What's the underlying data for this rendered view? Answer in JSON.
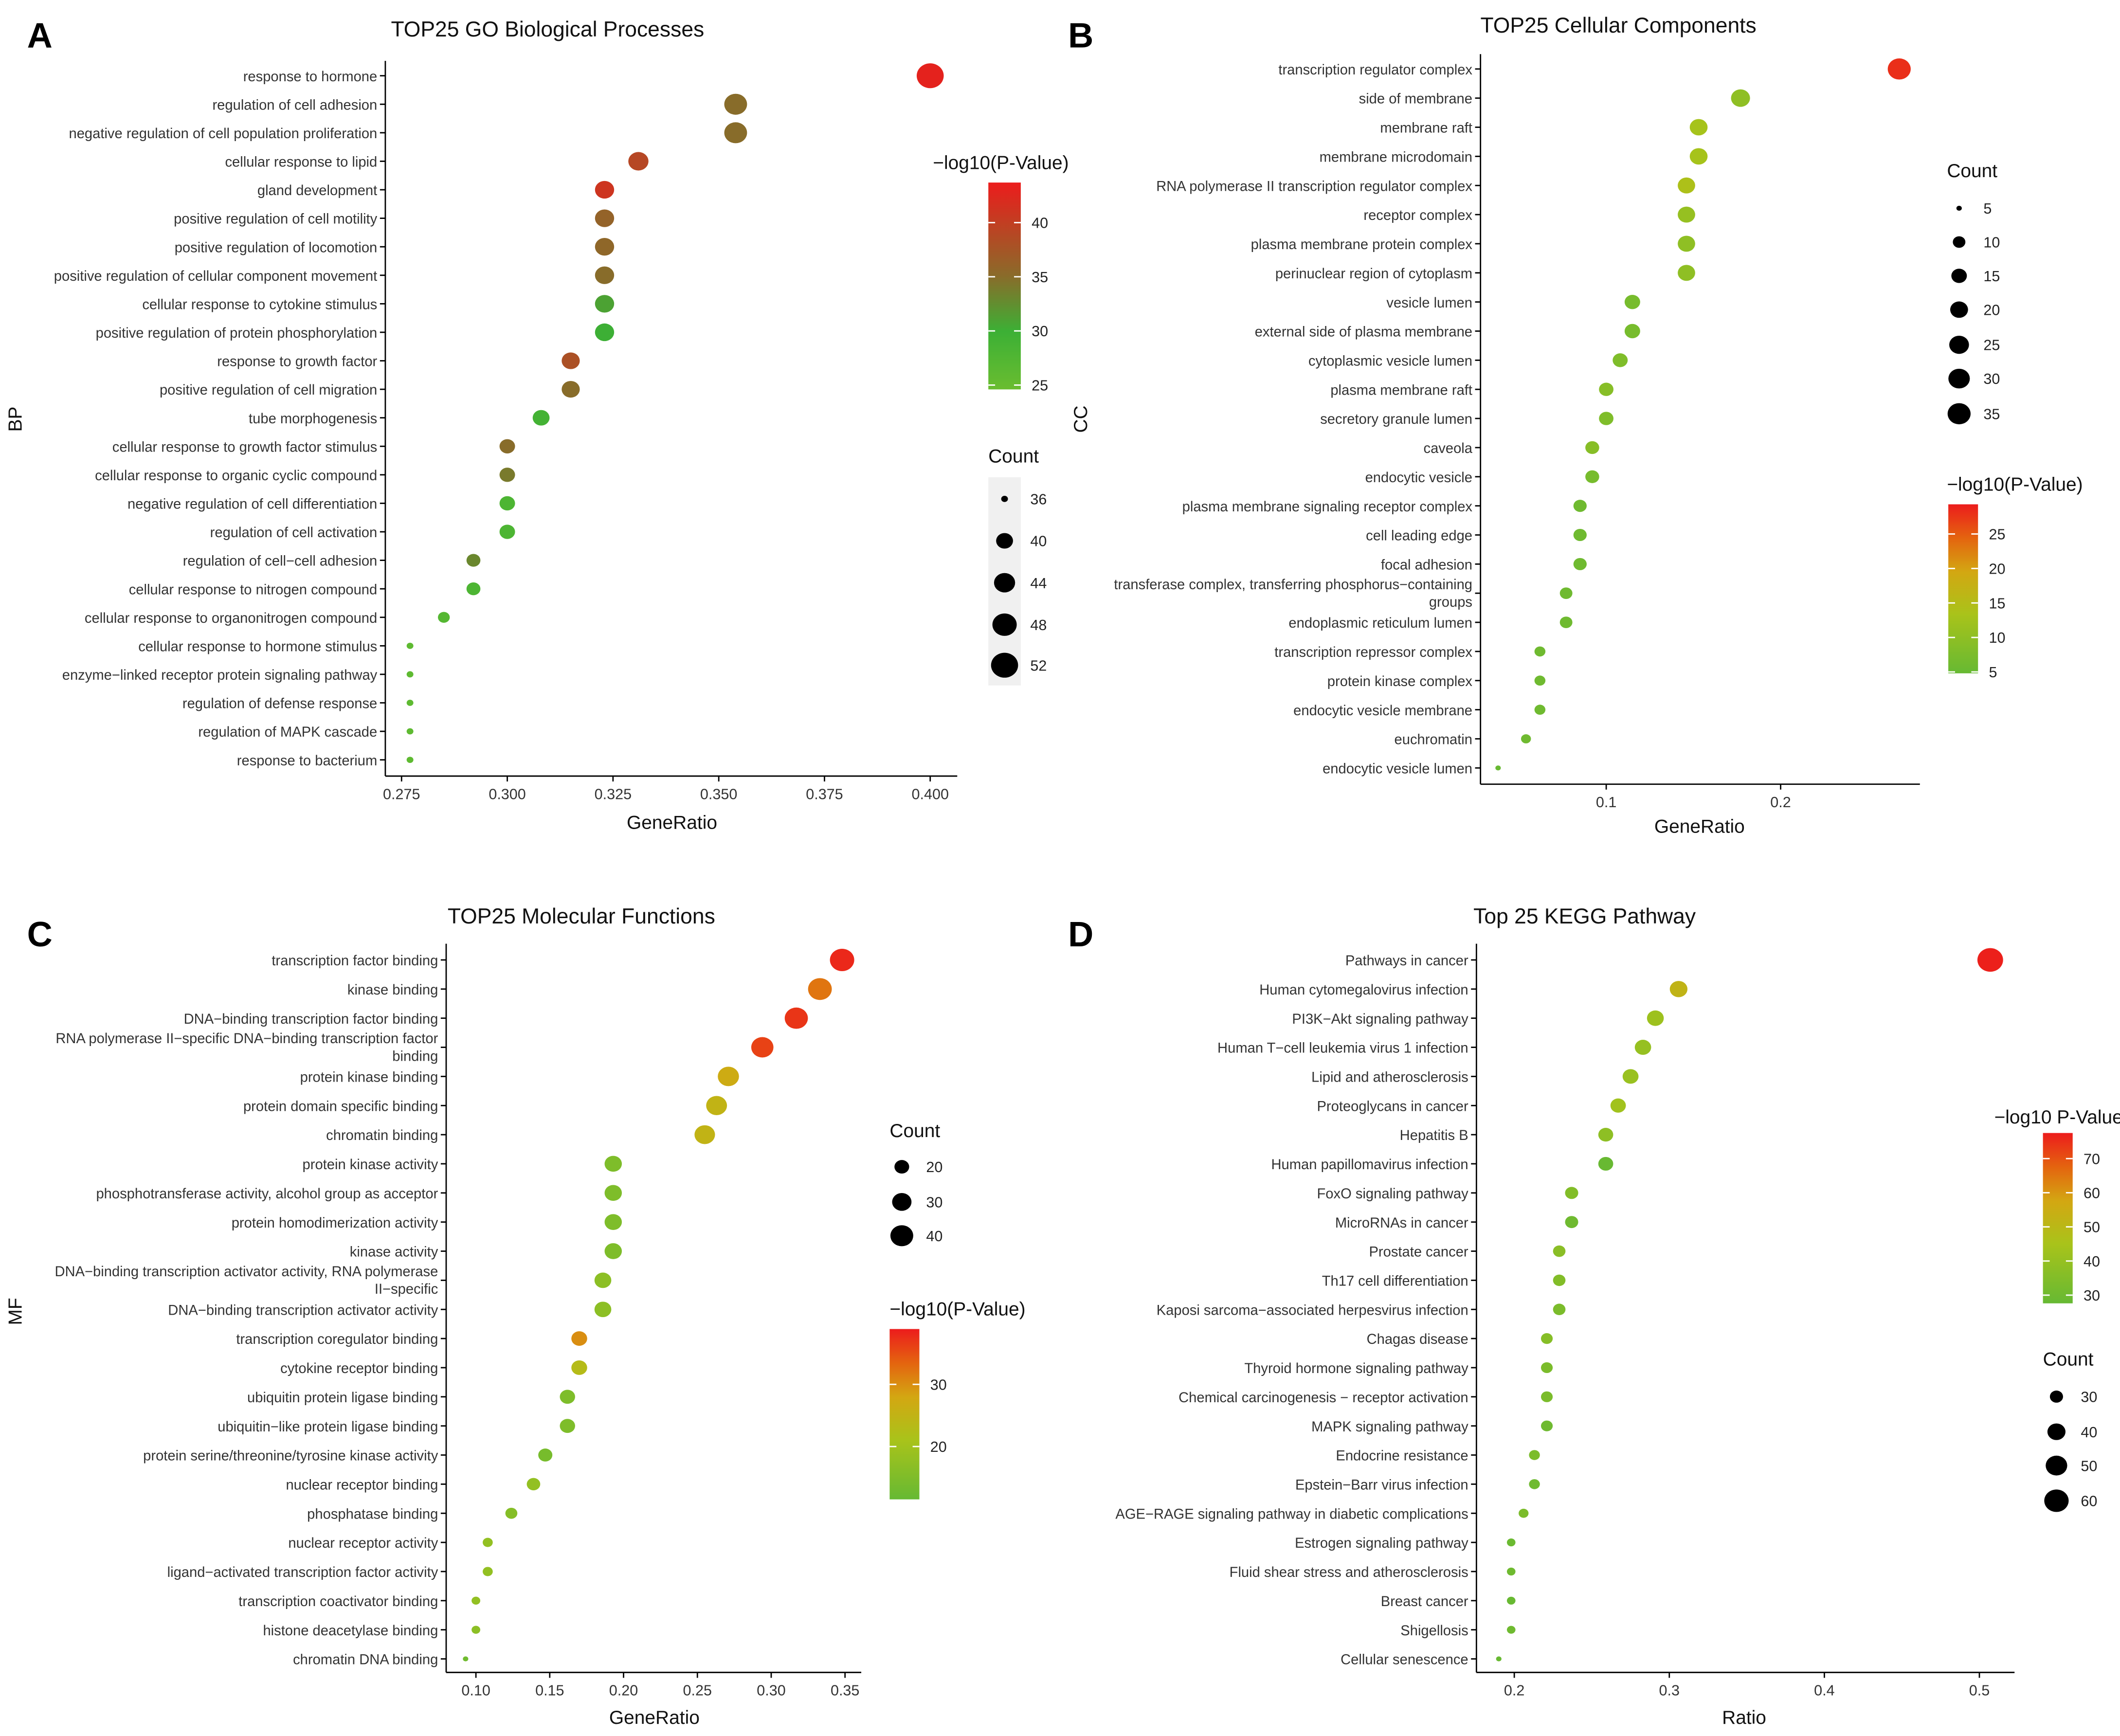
{
  "chart_data": [
    {
      "type": "scatter",
      "panel": "A",
      "title": "TOP25 GO Biological Processes",
      "xlabel": "GeneRatio",
      "ylabel": "BP",
      "xticks": [
        "0.275",
        "0.300",
        "0.325",
        "0.350",
        "0.375",
        "0.400"
      ],
      "color_legend": {
        "title": "−log10(P-Value)",
        "ticks": [
          "25",
          "30",
          "35",
          "40"
        ],
        "range": [
          24.6,
          43.7
        ],
        "stops": [
          [
            0,
            "#6abd30"
          ],
          [
            0.28,
            "#3cb035"
          ],
          [
            0.55,
            "#8a6b2a"
          ],
          [
            1,
            "#ec1c1c"
          ]
        ]
      },
      "size_legend": {
        "title": "Count",
        "values": [
          "36",
          "40",
          "44",
          "48",
          "52"
        ]
      },
      "points": [
        {
          "term": "response to hormone",
          "x": 0.4,
          "count": 52,
          "logp": 43
        },
        {
          "term": "regulation of cell adhesion",
          "x": 0.354,
          "count": 46,
          "logp": 35
        },
        {
          "term": "negative regulation of cell population proliferation",
          "x": 0.354,
          "count": 46,
          "logp": 35
        },
        {
          "term": "cellular response to lipid",
          "x": 0.331,
          "count": 43,
          "logp": 39
        },
        {
          "term": "gland development",
          "x": 0.323,
          "count": 42,
          "logp": 41
        },
        {
          "term": "positive regulation of cell motility",
          "x": 0.323,
          "count": 42,
          "logp": 36
        },
        {
          "term": "positive regulation of locomotion",
          "x": 0.323,
          "count": 42,
          "logp": 35.5
        },
        {
          "term": "positive regulation of cellular component movement",
          "x": 0.323,
          "count": 42,
          "logp": 35
        },
        {
          "term": "cellular response to cytokine stimulus",
          "x": 0.323,
          "count": 42,
          "logp": 31
        },
        {
          "term": "positive regulation of protein phosphorylation",
          "x": 0.323,
          "count": 42,
          "logp": 30
        },
        {
          "term": "response to growth factor",
          "x": 0.315,
          "count": 41,
          "logp": 38
        },
        {
          "term": "positive regulation of cell migration",
          "x": 0.315,
          "count": 41,
          "logp": 35
        },
        {
          "term": "tube morphogenesis",
          "x": 0.308,
          "count": 40,
          "logp": 29
        },
        {
          "term": "cellular response to growth factor stimulus",
          "x": 0.3,
          "count": 39,
          "logp": 35
        },
        {
          "term": "cellular response to organic cyclic compound",
          "x": 0.3,
          "count": 39,
          "logp": 34
        },
        {
          "term": "negative regulation of cell differentiation",
          "x": 0.3,
          "count": 39,
          "logp": 28
        },
        {
          "term": "regulation of cell activation",
          "x": 0.3,
          "count": 39,
          "logp": 28
        },
        {
          "term": "regulation of cell−cell adhesion",
          "x": 0.292,
          "count": 38,
          "logp": 33
        },
        {
          "term": "cellular response to nitrogen compound",
          "x": 0.292,
          "count": 38,
          "logp": 28
        },
        {
          "term": "cellular response to organonitrogen compound",
          "x": 0.285,
          "count": 37,
          "logp": 27
        },
        {
          "term": "cellular response to hormone stimulus",
          "x": 0.277,
          "count": 36,
          "logp": 26
        },
        {
          "term": "enzyme−linked receptor protein signaling pathway",
          "x": 0.277,
          "count": 36,
          "logp": 26
        },
        {
          "term": "regulation of defense response",
          "x": 0.277,
          "count": 36,
          "logp": 26
        },
        {
          "term": "regulation of MAPK cascade",
          "x": 0.277,
          "count": 36,
          "logp": 26
        },
        {
          "term": "response to bacterium",
          "x": 0.277,
          "count": 36,
          "logp": 26
        }
      ]
    },
    {
      "type": "scatter",
      "panel": "B",
      "title": "TOP25 Cellular Components",
      "xlabel": "GeneRatio",
      "ylabel": "CC",
      "xticks": [
        "0.1",
        "0.2"
      ],
      "color_legend": {
        "title": "−log10(P-Value)",
        "ticks": [
          "5",
          "10",
          "15",
          "20",
          "25"
        ],
        "range": [
          4.8,
          29.3
        ],
        "stops": [
          [
            0,
            "#66b933"
          ],
          [
            0.35,
            "#a9c31a"
          ],
          [
            0.6,
            "#d3a712"
          ],
          [
            0.8,
            "#e4640f"
          ],
          [
            1,
            "#ec1c1c"
          ]
        ]
      },
      "size_legend": {
        "title": "Count",
        "values": [
          "5",
          "10",
          "15",
          "20",
          "25",
          "30",
          "35"
        ]
      },
      "points": [
        {
          "term": "transcription regulator complex",
          "x": 0.268,
          "count": 35,
          "logp": 28
        },
        {
          "term": "side of membrane",
          "x": 0.177,
          "count": 23,
          "logp": 10
        },
        {
          "term": "membrane raft",
          "x": 0.153,
          "count": 20,
          "logp": 13
        },
        {
          "term": "membrane microdomain",
          "x": 0.153,
          "count": 20,
          "logp": 13
        },
        {
          "term": "RNA polymerase II transcription regulator complex",
          "x": 0.146,
          "count": 19,
          "logp": 14
        },
        {
          "term": "receptor complex",
          "x": 0.146,
          "count": 19,
          "logp": 11
        },
        {
          "term": "plasma membrane protein complex",
          "x": 0.146,
          "count": 19,
          "logp": 10
        },
        {
          "term": "perinuclear region of cytoplasm",
          "x": 0.146,
          "count": 19,
          "logp": 10
        },
        {
          "term": "vesicle lumen",
          "x": 0.115,
          "count": 15,
          "logp": 7
        },
        {
          "term": "external side of plasma membrane",
          "x": 0.115,
          "count": 15,
          "logp": 7
        },
        {
          "term": "cytoplasmic vesicle lumen",
          "x": 0.108,
          "count": 14,
          "logp": 8
        },
        {
          "term": "plasma membrane raft",
          "x": 0.1,
          "count": 13,
          "logp": 9
        },
        {
          "term": "secretory granule lumen",
          "x": 0.1,
          "count": 13,
          "logp": 8
        },
        {
          "term": "caveola",
          "x": 0.092,
          "count": 12,
          "logp": 9
        },
        {
          "term": "endocytic vesicle",
          "x": 0.092,
          "count": 12,
          "logp": 7
        },
        {
          "term": "plasma membrane signaling receptor complex",
          "x": 0.085,
          "count": 11,
          "logp": 6
        },
        {
          "term": "cell leading edge",
          "x": 0.085,
          "count": 11,
          "logp": 6
        },
        {
          "term": "focal adhesion",
          "x": 0.085,
          "count": 11,
          "logp": 6
        },
        {
          "term": "transferase complex, transferring phosphorus−containing\ngroups",
          "x": 0.077,
          "count": 10,
          "logp": 6
        },
        {
          "term": "endoplasmic reticulum lumen",
          "x": 0.077,
          "count": 10,
          "logp": 6
        },
        {
          "term": "transcription repressor complex",
          "x": 0.062,
          "count": 8,
          "logp": 6
        },
        {
          "term": "protein kinase complex",
          "x": 0.062,
          "count": 8,
          "logp": 6
        },
        {
          "term": "endocytic vesicle membrane",
          "x": 0.062,
          "count": 8,
          "logp": 6
        },
        {
          "term": "euchromatin",
          "x": 0.054,
          "count": 7,
          "logp": 6
        },
        {
          "term": "endocytic vesicle lumen",
          "x": 0.038,
          "count": 5,
          "logp": 5
        }
      ]
    },
    {
      "type": "scatter",
      "panel": "C",
      "title": "TOP25 Molecular Functions",
      "xlabel": "GeneRatio",
      "ylabel": "MF",
      "xticks": [
        "0.10",
        "0.15",
        "0.20",
        "0.25",
        "0.30",
        "0.35"
      ],
      "color_legend": {
        "title": "−log10(P-Value)",
        "ticks": [
          "20",
          "30"
        ],
        "range": [
          11.5,
          38.9
        ],
        "stops": [
          [
            0,
            "#66b933"
          ],
          [
            0.35,
            "#a9c31a"
          ],
          [
            0.6,
            "#d3a712"
          ],
          [
            0.8,
            "#e4640f"
          ],
          [
            1,
            "#ec1c1c"
          ]
        ]
      },
      "size_legend": {
        "title": "Count",
        "values": [
          "20",
          "30",
          "40"
        ]
      },
      "points": [
        {
          "term": "transcription factor binding",
          "x": 0.348,
          "count": 45,
          "logp": 38
        },
        {
          "term": "kinase binding",
          "x": 0.333,
          "count": 43,
          "logp": 32
        },
        {
          "term": "DNA−binding transcription factor binding",
          "x": 0.317,
          "count": 41,
          "logp": 37
        },
        {
          "term": "RNA polymerase II−specific DNA−binding transcription factor\nbinding",
          "x": 0.294,
          "count": 38,
          "logp": 36
        },
        {
          "term": "protein kinase binding",
          "x": 0.271,
          "count": 35,
          "logp": 27
        },
        {
          "term": "protein domain specific binding",
          "x": 0.263,
          "count": 34,
          "logp": 25
        },
        {
          "term": "chromatin binding",
          "x": 0.255,
          "count": 33,
          "logp": 25
        },
        {
          "term": "protein kinase activity",
          "x": 0.193,
          "count": 25,
          "logp": 15
        },
        {
          "term": "phosphotransferase activity, alcohol group as acceptor",
          "x": 0.193,
          "count": 25,
          "logp": 15
        },
        {
          "term": "protein homodimerization activity",
          "x": 0.193,
          "count": 25,
          "logp": 15
        },
        {
          "term": "kinase activity",
          "x": 0.193,
          "count": 25,
          "logp": 15
        },
        {
          "term": "DNA−binding transcription activator activity, RNA polymerase\nII−specific",
          "x": 0.186,
          "count": 24,
          "logp": 17
        },
        {
          "term": "DNA−binding transcription activator activity",
          "x": 0.186,
          "count": 24,
          "logp": 17
        },
        {
          "term": "transcription coregulator binding",
          "x": 0.17,
          "count": 22,
          "logp": 30
        },
        {
          "term": "cytokine receptor binding",
          "x": 0.17,
          "count": 22,
          "logp": 23
        },
        {
          "term": "ubiquitin protein ligase binding",
          "x": 0.162,
          "count": 21,
          "logp": 15
        },
        {
          "term": "ubiquitin−like protein ligase binding",
          "x": 0.162,
          "count": 21,
          "logp": 15
        },
        {
          "term": "protein serine/threonine/tyrosine kinase activity",
          "x": 0.147,
          "count": 19,
          "logp": 14
        },
        {
          "term": "nuclear receptor binding",
          "x": 0.139,
          "count": 18,
          "logp": 18
        },
        {
          "term": "phosphatase binding",
          "x": 0.124,
          "count": 16,
          "logp": 16
        },
        {
          "term": "nuclear receptor activity",
          "x": 0.108,
          "count": 14,
          "logp": 18
        },
        {
          "term": "ligand−activated transcription factor activity",
          "x": 0.108,
          "count": 14,
          "logp": 18
        },
        {
          "term": "transcription coactivator binding",
          "x": 0.1,
          "count": 13,
          "logp": 18
        },
        {
          "term": "histone deacetylase binding",
          "x": 0.1,
          "count": 13,
          "logp": 17
        },
        {
          "term": "chromatin DNA binding",
          "x": 0.093,
          "count": 12,
          "logp": 13
        }
      ]
    },
    {
      "type": "scatter",
      "panel": "D",
      "title": "Top 25 KEGG Pathway",
      "xlabel": "Ratio",
      "ylabel": "",
      "xticks": [
        "0.2",
        "0.3",
        "0.4",
        "0.5"
      ],
      "color_legend": {
        "title": "−log10 P-Value",
        "ticks": [
          "30",
          "40",
          "50",
          "60",
          "70"
        ],
        "range": [
          27.6,
          77.5
        ],
        "stops": [
          [
            0,
            "#66b933"
          ],
          [
            0.35,
            "#a9c31a"
          ],
          [
            0.6,
            "#d3a712"
          ],
          [
            0.8,
            "#e4640f"
          ],
          [
            1,
            "#ec1c1c"
          ]
        ]
      },
      "size_legend": {
        "title": "Count",
        "values": [
          "30",
          "40",
          "50",
          "60"
        ]
      },
      "points": [
        {
          "term": "Pathways in cancer",
          "x": 0.507,
          "count": 65,
          "logp": 77
        },
        {
          "term": "Human cytomegalovirus infection",
          "x": 0.306,
          "count": 39,
          "logp": 52
        },
        {
          "term": "PI3K−Akt signaling pathway",
          "x": 0.291,
          "count": 37,
          "logp": 42
        },
        {
          "term": "Human T−cell leukemia virus 1 infection",
          "x": 0.283,
          "count": 36,
          "logp": 40
        },
        {
          "term": "Lipid and atherosclerosis",
          "x": 0.275,
          "count": 35,
          "logp": 41
        },
        {
          "term": "Proteoglycans in cancer",
          "x": 0.267,
          "count": 34,
          "logp": 43
        },
        {
          "term": "Hepatitis B",
          "x": 0.259,
          "count": 33,
          "logp": 38
        },
        {
          "term": "Human papillomavirus infection",
          "x": 0.259,
          "count": 33,
          "logp": 28
        },
        {
          "term": "FoxO signaling pathway",
          "x": 0.237,
          "count": 30,
          "logp": 35
        },
        {
          "term": "MicroRNAs in cancer",
          "x": 0.237,
          "count": 30,
          "logp": 30
        },
        {
          "term": "Prostate cancer",
          "x": 0.229,
          "count": 29,
          "logp": 37
        },
        {
          "term": "Th17 cell differentiation",
          "x": 0.229,
          "count": 29,
          "logp": 35
        },
        {
          "term": "Kaposi sarcoma−associated herpesvirus infection",
          "x": 0.229,
          "count": 29,
          "logp": 33
        },
        {
          "term": "Chagas disease",
          "x": 0.221,
          "count": 28,
          "logp": 36
        },
        {
          "term": "Thyroid hormone signaling pathway",
          "x": 0.221,
          "count": 28,
          "logp": 33
        },
        {
          "term": "Chemical carcinogenesis − receptor activation",
          "x": 0.221,
          "count": 28,
          "logp": 33
        },
        {
          "term": "MAPK signaling pathway",
          "x": 0.221,
          "count": 28,
          "logp": 30
        },
        {
          "term": "Endocrine resistance",
          "x": 0.213,
          "count": 27,
          "logp": 33
        },
        {
          "term": "Epstein−Barr virus infection",
          "x": 0.213,
          "count": 27,
          "logp": 30
        },
        {
          "term": "AGE−RAGE signaling pathway in diabetic complications",
          "x": 0.206,
          "count": 26,
          "logp": 33
        },
        {
          "term": "Estrogen signaling pathway",
          "x": 0.198,
          "count": 25,
          "logp": 29
        },
        {
          "term": "Fluid shear stress and atherosclerosis",
          "x": 0.198,
          "count": 25,
          "logp": 30
        },
        {
          "term": "Breast cancer",
          "x": 0.198,
          "count": 25,
          "logp": 28
        },
        {
          "term": "Shigellosis",
          "x": 0.198,
          "count": 25,
          "logp": 30
        },
        {
          "term": "Cellular senescence",
          "x": 0.19,
          "count": 24,
          "logp": 28
        }
      ]
    }
  ]
}
